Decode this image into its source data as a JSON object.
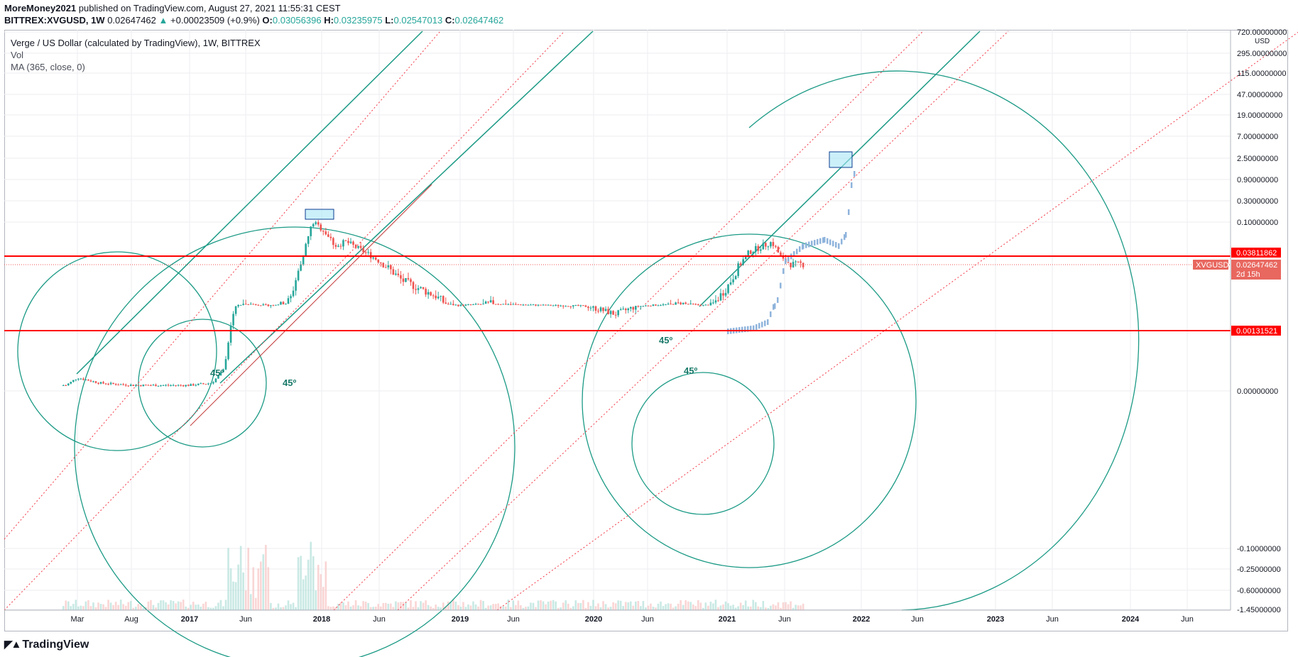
{
  "header": {
    "author": "MoreMoney2021",
    "published_text": " published on TradingView.com, August 27, 2021 11:55:31 CEST"
  },
  "ohlc": {
    "symbol": "BITTREX:XVGUSD, 1W",
    "last": "0.02647462",
    "change": "+0.00023509 (+0.9%)",
    "o_label": "O:",
    "o": "0.03056396",
    "h_label": "H:",
    "h": "0.03235975",
    "l_label": "L:",
    "l": "0.02547013",
    "c_label": "C:",
    "c": "0.02647462"
  },
  "legend": {
    "title": "Verge / US Dollar (calculated by TradingView), 1W, BITTREX",
    "vol": "Vol",
    "ma": "MA (365, close, 0)"
  },
  "footer": {
    "brand": "TradingView"
  },
  "colors": {
    "up": "#26a69a",
    "down": "#ef5350",
    "line_teal": "#1b9a85",
    "dotted_red": "#f23645",
    "hline_red": "#ff0000",
    "projection": "#8fb4dc",
    "grid": "#eceef2",
    "box_fill": "#a9e6f5"
  },
  "chart_data": {
    "type": "candlestick",
    "title": "Verge / US Dollar (calculated by TradingView), 1W, BITTREX",
    "xlabel": "",
    "ylabel": "",
    "y_scale": "log",
    "y_currency": "USD",
    "y_ticks": [
      "720.00000000",
      "295.00000000",
      "115.00000000",
      "47.00000000",
      "19.00000000",
      "7.00000000",
      "2.50000000",
      "0.90000000",
      "0.30000000",
      "0.10000000",
      "0.00000000",
      "-0.10000000",
      "-0.25000000",
      "-0.60000000",
      "-1.45000000"
    ],
    "x_ticks": [
      "Mar",
      "Aug",
      "2017",
      "Jun",
      "2018",
      "Jun",
      "2019",
      "Jun",
      "2020",
      "Jun",
      "2021",
      "Jun",
      "2022",
      "Jun",
      "2023",
      "Jun",
      "2024",
      "Jun"
    ],
    "price_labels": [
      {
        "text": "0.03811862",
        "kind": "hline"
      },
      {
        "text": "0.02647462",
        "kind": "last",
        "symbol": "XVGUSD",
        "countdown": "2d 15h"
      },
      {
        "text": "0.00131521",
        "kind": "hline"
      }
    ],
    "annotations": [
      "45º",
      "45º",
      "45º",
      "45º"
    ],
    "series": [
      {
        "name": "XVGUSD close (approx.)",
        "x": [
          "2016-02",
          "2016-03",
          "2016-05",
          "2016-08",
          "2016-11",
          "2017-01",
          "2017-03",
          "2017-04",
          "2017-05",
          "2017-06",
          "2017-08",
          "2017-10",
          "2017-11",
          "2017-12",
          "2018-01",
          "2018-02",
          "2018-03",
          "2018-05",
          "2018-08",
          "2018-11",
          "2019-01",
          "2019-04",
          "2019-06",
          "2019-09",
          "2019-12",
          "2020-03",
          "2020-06",
          "2020-09",
          "2020-11",
          "2021-01",
          "2021-03",
          "2021-05",
          "2021-06",
          "2021-07",
          "2021-08"
        ],
        "values": [
          3e-05,
          8e-05,
          4e-05,
          3e-05,
          3e-05,
          3e-05,
          4e-05,
          0.0002,
          0.004,
          0.007,
          0.005,
          0.008,
          0.03,
          0.18,
          0.12,
          0.06,
          0.07,
          0.04,
          0.015,
          0.009,
          0.005,
          0.007,
          0.006,
          0.005,
          0.0045,
          0.0028,
          0.005,
          0.007,
          0.005,
          0.012,
          0.045,
          0.07,
          0.03,
          0.025,
          0.0265
        ]
      }
    ],
    "ma_series": {
      "name": "MA (365, close, 0)"
    }
  }
}
